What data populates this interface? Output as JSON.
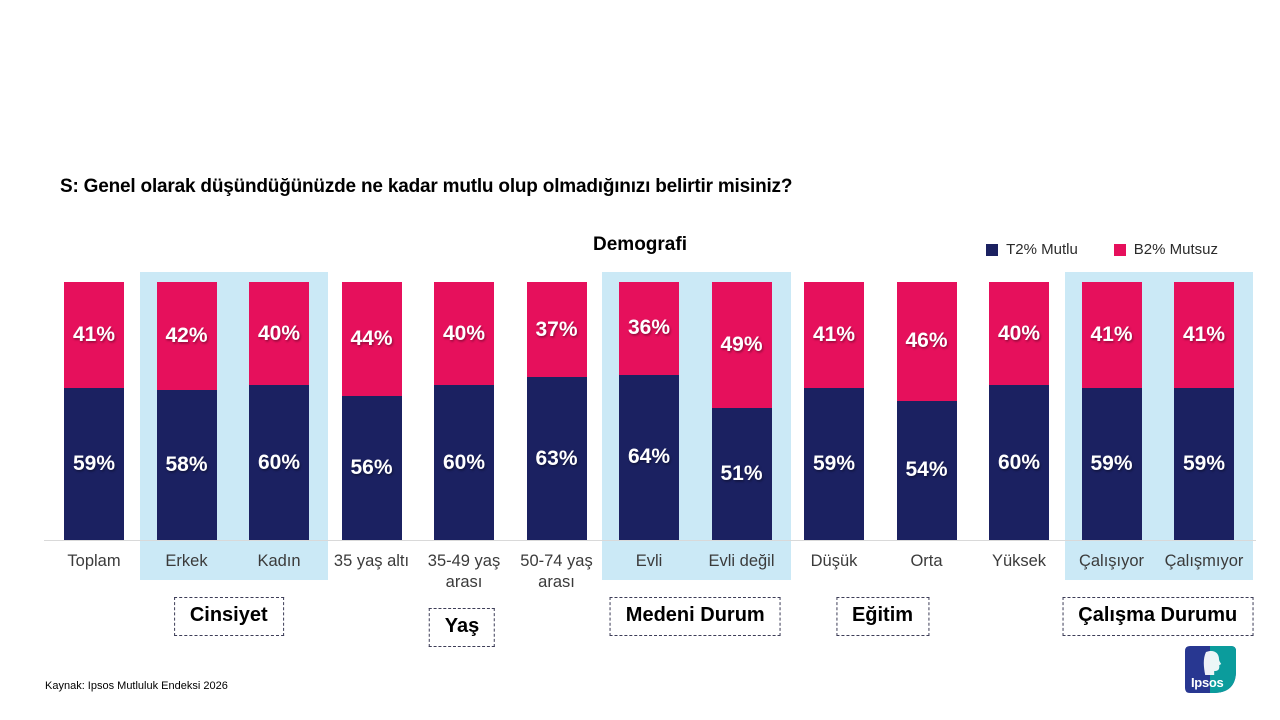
{
  "slide": {
    "question_title": "S: Genel olarak düşündüğünüzde ne kadar mutlu olup olmadığınızı belirtir misiniz?",
    "source": "Kaynak: Ipsos Mutluluk Endeksi 2026",
    "logo": {
      "text": "Ipsos",
      "blue": "#283791",
      "teal": "#0B9C9C"
    }
  },
  "chart_data": {
    "type": "bar",
    "variant": "stacked-100-percent",
    "title": "Demografi",
    "legend_position": "top-right",
    "grid": false,
    "ylim": [
      0,
      100
    ],
    "value_suffix": "%",
    "categories": [
      "Toplam",
      "Erkek",
      "Kadın",
      "35 yaş altı",
      "35-49 yaş arası",
      "50-74 yaş arası",
      "Evli",
      "Evli değil",
      "Düşük",
      "Orta",
      "Yüksek",
      "Çalışıyor",
      "Çalışmıyor"
    ],
    "series": [
      {
        "name": "T2% Mutlu",
        "color": "#1B2161",
        "values": [
          59,
          58,
          60,
          56,
          60,
          63,
          64,
          51,
          59,
          54,
          60,
          59,
          59
        ]
      },
      {
        "name": "B2% Mutsuz",
        "color": "#E6105C",
        "values": [
          41,
          42,
          40,
          44,
          40,
          37,
          36,
          49,
          41,
          46,
          40,
          41,
          41
        ]
      }
    ],
    "groups": [
      {
        "label": "Cinsiyet",
        "from": 1,
        "to": 2,
        "highlighted": true
      },
      {
        "label": "Yaş",
        "from": 3,
        "to": 5,
        "highlighted": false
      },
      {
        "label": "Medeni Durum",
        "from": 6,
        "to": 7,
        "highlighted": true
      },
      {
        "label": "Eğitim",
        "from": 8,
        "to": 10,
        "highlighted": false
      },
      {
        "label": "Çalışma Durumu",
        "from": 11,
        "to": 12,
        "highlighted": true
      }
    ],
    "highlight_color": "#CBE9F6",
    "bar_label_color": "#FFFFFF"
  }
}
